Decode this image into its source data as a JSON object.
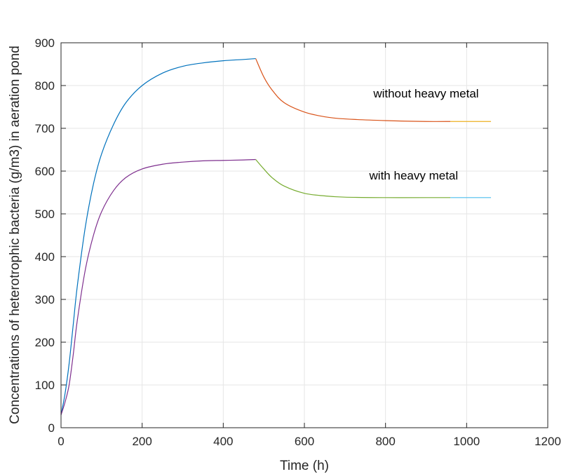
{
  "chart_data": {
    "type": "line",
    "title": "",
    "xlabel": "Time (h)",
    "ylabel": "Concentrations of heterotrophic bacteria (g/m3) in aeration pond",
    "xlim": [
      0,
      1200
    ],
    "ylim": [
      0,
      900
    ],
    "xticks": [
      0,
      200,
      400,
      600,
      800,
      1000,
      1200
    ],
    "yticks": [
      0,
      100,
      200,
      300,
      400,
      500,
      600,
      700,
      800,
      900
    ],
    "xtick_labels": [
      "0",
      "200",
      "400",
      "600",
      "800",
      "1000",
      "1200"
    ],
    "ytick_labels": [
      "0",
      "100",
      "200",
      "300",
      "400",
      "500",
      "600",
      "700",
      "800",
      "900"
    ],
    "grid": true,
    "legend": "none",
    "annotations": [
      {
        "text": "without heavy metal",
        "x": 770,
        "y": 772
      },
      {
        "text": "with heavy metal",
        "x": 760,
        "y": 580
      }
    ],
    "series": [
      {
        "color": "#0072BD",
        "x": [
          0,
          10,
          20,
          30,
          40,
          60,
          80,
          100,
          130,
          160,
          200,
          250,
          300,
          350,
          400,
          450,
          480
        ],
        "y": [
          30,
          80,
          150,
          240,
          330,
          470,
          570,
          640,
          710,
          760,
          800,
          829,
          845,
          853,
          858,
          861,
          863
        ]
      },
      {
        "color": "#D95319",
        "x": [
          480,
          500,
          520,
          550,
          600,
          650,
          700,
          800,
          900,
          960
        ],
        "y": [
          863,
          820,
          790,
          760,
          738,
          727,
          722,
          718,
          716,
          716
        ]
      },
      {
        "color": "#EDB120",
        "x": [
          960,
          1000,
          1060
        ],
        "y": [
          716,
          716,
          716
        ]
      },
      {
        "color": "#7E2F8E",
        "x": [
          0,
          10,
          20,
          30,
          40,
          60,
          80,
          100,
          130,
          160,
          200,
          250,
          300,
          350,
          400,
          450,
          480
        ],
        "y": [
          30,
          60,
          100,
          170,
          250,
          370,
          450,
          505,
          555,
          585,
          605,
          616,
          621,
          624,
          625,
          626,
          627
        ]
      },
      {
        "color": "#77AC30",
        "x": [
          480,
          500,
          520,
          550,
          600,
          650,
          700,
          800,
          900,
          960
        ],
        "y": [
          627,
          605,
          585,
          565,
          548,
          542,
          539,
          538,
          538,
          538
        ]
      },
      {
        "color": "#4DBEEE",
        "x": [
          960,
          1000,
          1060
        ],
        "y": [
          538,
          538,
          538
        ]
      }
    ]
  }
}
